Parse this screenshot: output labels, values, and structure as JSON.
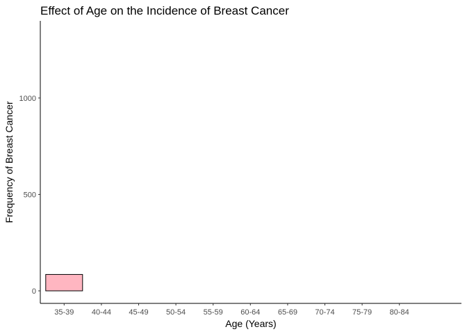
{
  "chart_data": {
    "type": "bar",
    "title": "Effect of Age on the Incidence of Breast Cancer",
    "xlabel": "Age (Years)",
    "ylabel": "Frequency of Breast Cancer",
    "categories": [
      "35-39",
      "40-44",
      "45-49",
      "50-54",
      "55-59",
      "60-64",
      "65-69",
      "70-74",
      "75-79",
      "80-84"
    ],
    "series": [
      {
        "values": [
          85,
          null,
          null,
          null,
          null,
          null,
          null,
          null,
          null,
          null
        ]
      }
    ],
    "yticks": [
      0,
      500,
      1000
    ],
    "ylim": [
      -65,
      1400
    ],
    "grid": false,
    "legend": "none",
    "colors": {
      "bar_fill": "#ffb6c1",
      "bar_stroke": "#000000"
    }
  }
}
